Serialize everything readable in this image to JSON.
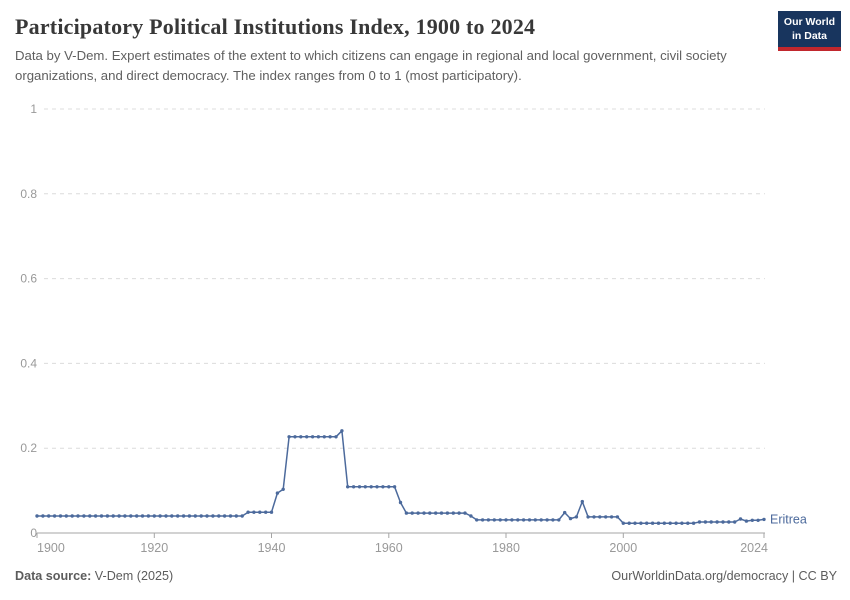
{
  "header": {
    "title": "Participatory Political Institutions Index, 1900 to 2024",
    "subtitle": "Data by V-Dem. Expert estimates of the extent to which citizens can engage in regional and local government, civil society organizations, and direct democracy. The index ranges from 0 to 1 (most participatory).",
    "logo": {
      "line1": "Our World",
      "line2": "in Data"
    }
  },
  "footer": {
    "datasource_label": "Data source:",
    "datasource_value": " V-Dem (2025)",
    "credit": "OurWorldinData.org/democracy | CC BY"
  },
  "colors": {
    "line": "#4C6A9C",
    "grid": "#dcdcdc",
    "axis": "#a5a5a5",
    "tick_text": "#999999",
    "title_text": "#383838",
    "logo_bg": "#18355e",
    "logo_stripe": "#c1272d"
  },
  "chart_data": {
    "type": "line",
    "title": "Participatory Political Institutions Index, 1900 to 2024",
    "xlabel": "",
    "ylabel": "",
    "xlim": [
      1900,
      2024
    ],
    "ylim": [
      0,
      1
    ],
    "xticks": [
      1900,
      1920,
      1940,
      1960,
      1980,
      2000,
      2024
    ],
    "yticks": [
      0,
      0.2,
      0.4,
      0.6,
      0.8,
      1
    ],
    "grid": "horizontal-dashed",
    "legend_position": "end-of-line-label",
    "series": [
      {
        "name": "Eritrea",
        "color": "#4C6A9C",
        "x_start": 1900,
        "x_step": 1,
        "values": [
          0.04,
          0.04,
          0.04,
          0.04,
          0.04,
          0.04,
          0.04,
          0.04,
          0.04,
          0.04,
          0.04,
          0.04,
          0.04,
          0.04,
          0.04,
          0.04,
          0.04,
          0.04,
          0.04,
          0.04,
          0.04,
          0.04,
          0.04,
          0.04,
          0.04,
          0.04,
          0.04,
          0.04,
          0.04,
          0.04,
          0.04,
          0.04,
          0.04,
          0.04,
          0.04,
          0.04,
          0.049,
          0.049,
          0.049,
          0.049,
          0.049,
          0.094,
          0.103,
          0.227,
          0.227,
          0.227,
          0.227,
          0.227,
          0.227,
          0.227,
          0.227,
          0.227,
          0.241,
          0.109,
          0.109,
          0.109,
          0.109,
          0.109,
          0.109,
          0.109,
          0.109,
          0.109,
          0.072,
          0.047,
          0.047,
          0.047,
          0.047,
          0.047,
          0.047,
          0.047,
          0.047,
          0.047,
          0.047,
          0.047,
          0.04,
          0.031,
          0.031,
          0.031,
          0.031,
          0.031,
          0.031,
          0.031,
          0.031,
          0.031,
          0.031,
          0.031,
          0.031,
          0.031,
          0.031,
          0.031,
          0.048,
          0.034,
          0.038,
          0.074,
          0.038,
          0.038,
          0.038,
          0.038,
          0.038,
          0.038,
          0.023,
          0.023,
          0.023,
          0.023,
          0.023,
          0.023,
          0.023,
          0.023,
          0.023,
          0.023,
          0.023,
          0.023,
          0.023,
          0.026,
          0.026,
          0.026,
          0.026,
          0.026,
          0.026,
          0.026,
          0.033,
          0.028,
          0.03,
          0.03,
          0.032
        ]
      }
    ]
  }
}
